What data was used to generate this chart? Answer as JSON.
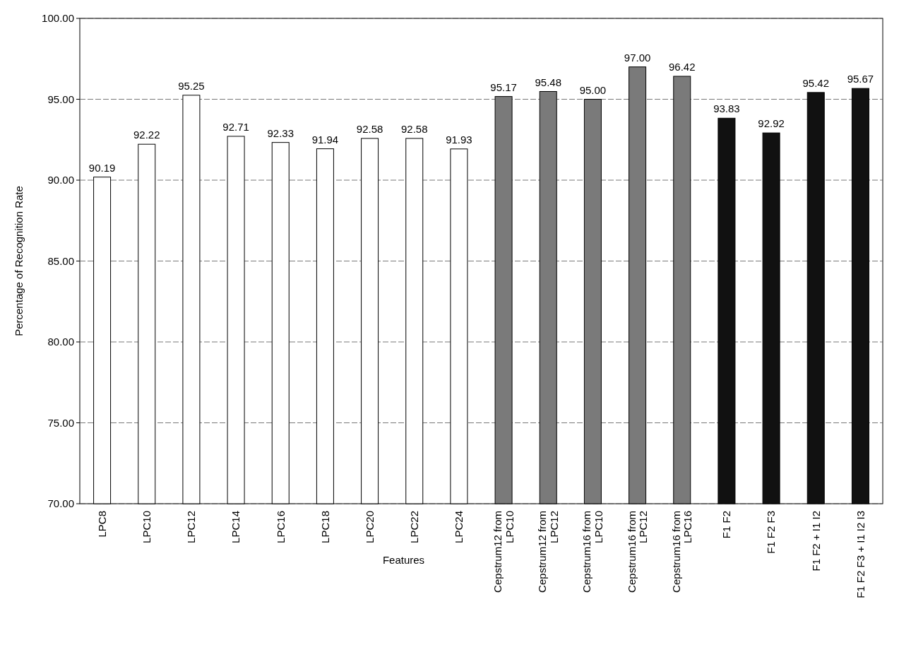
{
  "chart_data": {
    "type": "bar",
    "xlabel": "Features",
    "ylabel": "Percentage of Recognition Rate",
    "categories": [
      "LPC8",
      "LPC10",
      "LPC12",
      "LPC14",
      "LPC16",
      "LPC18",
      "LPC20",
      "LPC22",
      "LPC24",
      "Cepstrum12 from LPC10",
      "Cepstrum12 from LPC12",
      "Cepstrum16 from LPC10",
      "Cepstrum16 from LPC12",
      "Cepstrum16 from LPC16",
      "F1 F2",
      "F1 F2 F3",
      "F1 F2 + I1 I2",
      "F1 F2 F3 + I1 I2 I3"
    ],
    "values": [
      90.19,
      92.22,
      95.25,
      92.71,
      92.33,
      91.94,
      92.58,
      92.58,
      91.93,
      95.17,
      95.48,
      95.0,
      97.0,
      96.42,
      93.83,
      92.92,
      95.42,
      95.67
    ],
    "colors": [
      "#ffffff",
      "#ffffff",
      "#ffffff",
      "#ffffff",
      "#ffffff",
      "#ffffff",
      "#ffffff",
      "#ffffff",
      "#ffffff",
      "#7a7a7a",
      "#7a7a7a",
      "#7a7a7a",
      "#7a7a7a",
      "#7a7a7a",
      "#111111",
      "#111111",
      "#111111",
      "#111111"
    ],
    "ylim": [
      70,
      100
    ],
    "yticks": [
      {
        "value": 70,
        "label": "70.00"
      },
      {
        "value": 75,
        "label": "75.00"
      },
      {
        "value": 80,
        "label": "80.00"
      },
      {
        "value": 85,
        "label": "85.00"
      },
      {
        "value": 90,
        "label": "90.00"
      },
      {
        "value": 95,
        "label": "95.00"
      },
      {
        "value": 100,
        "label": "100.00"
      }
    ],
    "value_labels": [
      "90.19",
      "92.22",
      "95.25",
      "92.71",
      "92.33",
      "91.94",
      "92.58",
      "92.58",
      "91.93",
      "95.17",
      "95.48",
      "95.00",
      "97.00",
      "96.42",
      "93.83",
      "92.92",
      "95.42",
      "95.67"
    ],
    "grid": "y"
  }
}
